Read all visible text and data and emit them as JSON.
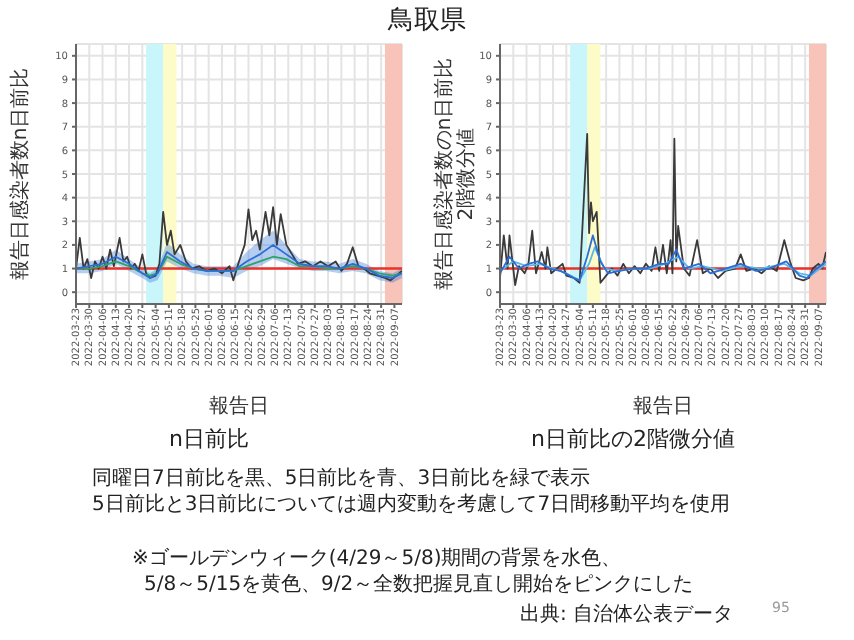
{
  "chart_data": [
    {
      "type": "line",
      "title": "n日前比",
      "xlabel": "報告日",
      "ylabel": "報告日感染者数n日前比",
      "xlim": [
        "2022-03-23",
        "2022-09-11"
      ],
      "ylim": [
        -0.5,
        10.5
      ],
      "yticks": [
        0,
        1,
        2,
        3,
        4,
        5,
        6,
        7,
        8,
        9,
        10
      ],
      "xticks": [
        "2022-03-23",
        "2022-03-30",
        "2022-04-06",
        "2022-04-13",
        "2022-04-20",
        "2022-04-27",
        "2022-05-04",
        "2022-05-11",
        "2022-05-18",
        "2022-05-25",
        "2022-06-01",
        "2022-06-08",
        "2022-06-15",
        "2022-06-22",
        "2022-06-29",
        "2022-07-06",
        "2022-07-13",
        "2022-07-20",
        "2022-07-27",
        "2022-08-03",
        "2022-08-10",
        "2022-08-17",
        "2022-08-24",
        "2022-08-31",
        "2022-09-07"
      ],
      "grid": true,
      "legend": false,
      "bands": [
        {
          "axis": "x",
          "from": "2022-04-29",
          "to": "2022-05-08",
          "color": "#c9f6fa"
        },
        {
          "axis": "x",
          "from": "2022-05-08",
          "to": "2022-05-15",
          "color": "#fdfbc8"
        },
        {
          "axis": "x",
          "from": "2022-09-02",
          "to": "2022-09-11",
          "color": "#f8c3b8"
        }
      ],
      "ref_lines": [
        {
          "axis": "y",
          "value": 1,
          "color": "#e8322a"
        }
      ],
      "series": [
        {
          "color": "#3a3a3a",
          "x": [
            "2022-03-23",
            "2022-03-25",
            "2022-03-27",
            "2022-03-29",
            "2022-03-31",
            "2022-04-02",
            "2022-04-04",
            "2022-04-06",
            "2022-04-08",
            "2022-04-10",
            "2022-04-12",
            "2022-04-15",
            "2022-04-17",
            "2022-04-19",
            "2022-04-21",
            "2022-04-23",
            "2022-04-25",
            "2022-04-27",
            "2022-04-29",
            "2022-05-01",
            "2022-05-04",
            "2022-05-06",
            "2022-05-08",
            "2022-05-10",
            "2022-05-12",
            "2022-05-14",
            "2022-05-17",
            "2022-05-20",
            "2022-05-23",
            "2022-05-27",
            "2022-05-31",
            "2022-06-04",
            "2022-06-08",
            "2022-06-12",
            "2022-06-14",
            "2022-06-17",
            "2022-06-20",
            "2022-06-22",
            "2022-06-24",
            "2022-06-26",
            "2022-06-28",
            "2022-07-01",
            "2022-07-03",
            "2022-07-05",
            "2022-07-07",
            "2022-07-09",
            "2022-07-12",
            "2022-07-15",
            "2022-07-18",
            "2022-07-22",
            "2022-07-26",
            "2022-07-30",
            "2022-08-03",
            "2022-08-07",
            "2022-08-10",
            "2022-08-13",
            "2022-08-16",
            "2022-08-19",
            "2022-08-22",
            "2022-08-25",
            "2022-08-29",
            "2022-09-02",
            "2022-09-05",
            "2022-09-08",
            "2022-09-11"
          ],
          "values": [
            1.0,
            2.3,
            1.0,
            1.4,
            0.6,
            1.3,
            1.0,
            1.5,
            1.0,
            1.8,
            1.1,
            2.3,
            1.3,
            1.5,
            1.0,
            1.2,
            0.9,
            1.6,
            0.8,
            0.6,
            0.7,
            1.2,
            3.4,
            2.0,
            2.6,
            1.6,
            2.0,
            1.3,
            1.0,
            1.1,
            0.9,
            1.0,
            0.8,
            1.1,
            0.5,
            1.3,
            2.0,
            3.5,
            2.2,
            2.6,
            1.8,
            3.4,
            2.4,
            3.6,
            2.0,
            3.3,
            2.0,
            1.6,
            1.2,
            1.3,
            1.1,
            1.3,
            1.1,
            1.3,
            0.9,
            1.2,
            1.9,
            1.1,
            1.0,
            0.8,
            0.7,
            0.6,
            0.5,
            0.7,
            0.9
          ]
        },
        {
          "color": "#2ea36a",
          "x": [
            "2022-03-23",
            "2022-03-30",
            "2022-04-06",
            "2022-04-13",
            "2022-04-20",
            "2022-04-27",
            "2022-05-01",
            "2022-05-05",
            "2022-05-10",
            "2022-05-17",
            "2022-05-24",
            "2022-05-31",
            "2022-06-07",
            "2022-06-14",
            "2022-06-21",
            "2022-06-28",
            "2022-07-05",
            "2022-07-12",
            "2022-07-19",
            "2022-07-26",
            "2022-08-02",
            "2022-08-09",
            "2022-08-16",
            "2022-08-23",
            "2022-08-30",
            "2022-09-06",
            "2022-09-11"
          ],
          "values": [
            1.0,
            1.0,
            1.1,
            1.3,
            1.1,
            0.8,
            0.7,
            0.8,
            1.5,
            1.2,
            1.0,
            0.9,
            0.9,
            0.9,
            1.1,
            1.3,
            1.5,
            1.4,
            1.1,
            1.1,
            1.0,
            1.0,
            1.1,
            1.0,
            0.8,
            0.7,
            0.8
          ]
        },
        {
          "color": "#2b6fd6",
          "x": [
            "2022-03-23",
            "2022-03-30",
            "2022-04-06",
            "2022-04-13",
            "2022-04-20",
            "2022-04-27",
            "2022-05-01",
            "2022-05-05",
            "2022-05-10",
            "2022-05-17",
            "2022-05-24",
            "2022-05-31",
            "2022-06-07",
            "2022-06-14",
            "2022-06-21",
            "2022-06-28",
            "2022-07-05",
            "2022-07-12",
            "2022-07-19",
            "2022-07-26",
            "2022-08-02",
            "2022-08-09",
            "2022-08-16",
            "2022-08-23",
            "2022-08-30",
            "2022-09-06",
            "2022-09-11"
          ],
          "values": [
            1.0,
            1.1,
            1.2,
            1.5,
            1.2,
            0.8,
            0.6,
            0.8,
            1.7,
            1.3,
            1.0,
            0.9,
            0.9,
            0.9,
            1.3,
            1.6,
            2.0,
            1.6,
            1.2,
            1.1,
            1.1,
            1.0,
            1.2,
            1.0,
            0.7,
            0.6,
            0.8
          ],
          "lower": [
            0.8,
            0.8,
            0.9,
            1.2,
            0.9,
            0.6,
            0.4,
            0.5,
            1.3,
            1.0,
            0.8,
            0.7,
            0.7,
            0.6,
            0.9,
            1.1,
            1.4,
            1.2,
            1.0,
            0.9,
            0.9,
            0.8,
            0.9,
            0.8,
            0.5,
            0.4,
            0.6
          ],
          "upper": [
            1.2,
            1.3,
            1.4,
            1.8,
            1.4,
            1.0,
            0.8,
            1.0,
            2.1,
            1.6,
            1.2,
            1.1,
            1.1,
            1.1,
            1.7,
            2.2,
            2.6,
            2.0,
            1.4,
            1.3,
            1.3,
            1.2,
            1.4,
            1.2,
            0.9,
            0.8,
            1.0
          ]
        }
      ]
    },
    {
      "type": "line",
      "title": "n日前比の2階微分値",
      "xlabel": "報告日",
      "ylabel": "報告日感染者数のn日前比\n2階微分値",
      "xlim": [
        "2022-03-23",
        "2022-09-11"
      ],
      "ylim": [
        -0.5,
        10.5
      ],
      "yticks": [
        0,
        1,
        2,
        3,
        4,
        5,
        6,
        7,
        8,
        9,
        10
      ],
      "xticks": [
        "2022-03-23",
        "2022-03-30",
        "2022-04-06",
        "2022-04-13",
        "2022-04-20",
        "2022-04-27",
        "2022-05-04",
        "2022-05-11",
        "2022-05-18",
        "2022-05-25",
        "2022-06-01",
        "2022-06-08",
        "2022-06-15",
        "2022-06-22",
        "2022-06-29",
        "2022-07-06",
        "2022-07-13",
        "2022-07-20",
        "2022-07-27",
        "2022-08-03",
        "2022-08-10",
        "2022-08-17",
        "2022-08-24",
        "2022-08-31",
        "2022-09-07"
      ],
      "grid": true,
      "legend": false,
      "bands": [
        {
          "axis": "x",
          "from": "2022-04-29",
          "to": "2022-05-08",
          "color": "#c9f6fa"
        },
        {
          "axis": "x",
          "from": "2022-05-08",
          "to": "2022-05-15",
          "color": "#fdfbc8"
        },
        {
          "axis": "x",
          "from": "2022-09-02",
          "to": "2022-09-11",
          "color": "#f8c3b8"
        }
      ],
      "ref_lines": [
        {
          "axis": "y",
          "value": 1,
          "color": "#e8322a"
        }
      ],
      "series": [
        {
          "color": "#3a3a3a",
          "x": [
            "2022-03-23",
            "2022-03-25",
            "2022-03-27",
            "2022-03-28",
            "2022-03-30",
            "2022-03-31",
            "2022-04-02",
            "2022-04-05",
            "2022-04-07",
            "2022-04-09",
            "2022-04-11",
            "2022-04-14",
            "2022-04-16",
            "2022-04-17",
            "2022-04-19",
            "2022-04-22",
            "2022-04-25",
            "2022-04-27",
            "2022-05-01",
            "2022-05-04",
            "2022-05-08",
            "2022-05-09",
            "2022-05-10",
            "2022-05-11",
            "2022-05-13",
            "2022-05-15",
            "2022-05-18",
            "2022-05-21",
            "2022-05-24",
            "2022-05-27",
            "2022-05-30",
            "2022-06-02",
            "2022-06-05",
            "2022-06-08",
            "2022-06-11",
            "2022-06-13",
            "2022-06-15",
            "2022-06-17",
            "2022-06-19",
            "2022-06-21",
            "2022-06-22",
            "2022-06-23",
            "2022-06-24",
            "2022-06-25",
            "2022-06-28",
            "2022-07-01",
            "2022-07-05",
            "2022-07-08",
            "2022-07-12",
            "2022-07-16",
            "2022-07-20",
            "2022-07-25",
            "2022-07-28",
            "2022-07-31",
            "2022-08-04",
            "2022-08-08",
            "2022-08-12",
            "2022-08-16",
            "2022-08-20",
            "2022-08-23",
            "2022-08-26",
            "2022-08-30",
            "2022-09-02",
            "2022-09-04",
            "2022-09-07",
            "2022-09-09",
            "2022-09-11"
          ],
          "values": [
            0.6,
            2.4,
            1.0,
            2.4,
            1.0,
            0.3,
            1.1,
            0.8,
            1.2,
            2.6,
            0.8,
            1.7,
            1.0,
            1.9,
            0.8,
            1.0,
            1.2,
            0.7,
            0.6,
            0.4,
            6.7,
            2.5,
            3.8,
            3.0,
            3.4,
            0.4,
            0.7,
            1.0,
            0.7,
            1.2,
            0.8,
            1.1,
            0.8,
            1.2,
            0.9,
            1.9,
            0.9,
            2.0,
            0.8,
            2.2,
            0.8,
            6.5,
            1.3,
            2.8,
            1.0,
            0.7,
            2.2,
            0.8,
            1.0,
            0.6,
            0.9,
            1.0,
            1.6,
            0.9,
            1.0,
            0.8,
            1.1,
            0.9,
            2.2,
            1.3,
            0.6,
            0.5,
            0.6,
            1.0,
            1.2,
            1.0,
            1.7
          ]
        },
        {
          "color": "#5bb8e8",
          "x": [
            "2022-03-23",
            "2022-03-30",
            "2022-04-06",
            "2022-04-13",
            "2022-04-20",
            "2022-04-27",
            "2022-05-04",
            "2022-05-09",
            "2022-05-12",
            "2022-05-17",
            "2022-05-24",
            "2022-06-01",
            "2022-06-10",
            "2022-06-18",
            "2022-06-25",
            "2022-07-01",
            "2022-07-08",
            "2022-07-18",
            "2022-07-28",
            "2022-08-08",
            "2022-08-20",
            "2022-08-28",
            "2022-09-03",
            "2022-09-11"
          ],
          "values": [
            0.9,
            1.3,
            1.1,
            1.2,
            1.0,
            0.8,
            0.5,
            1.2,
            1.9,
            1.0,
            0.9,
            1.0,
            1.0,
            1.2,
            1.5,
            1.0,
            1.1,
            0.9,
            1.1,
            1.0,
            1.2,
            0.8,
            0.7,
            1.2
          ]
        },
        {
          "color": "#2b6fd6",
          "x": [
            "2022-03-23",
            "2022-03-28",
            "2022-04-02",
            "2022-04-07",
            "2022-04-12",
            "2022-04-18",
            "2022-04-24",
            "2022-05-01",
            "2022-05-04",
            "2022-05-08",
            "2022-05-11",
            "2022-05-15",
            "2022-05-19",
            "2022-05-25",
            "2022-06-01",
            "2022-06-08",
            "2022-06-15",
            "2022-06-20",
            "2022-06-24",
            "2022-06-28",
            "2022-07-06",
            "2022-07-12",
            "2022-07-20",
            "2022-07-28",
            "2022-08-05",
            "2022-08-12",
            "2022-08-21",
            "2022-08-28",
            "2022-09-01",
            "2022-09-06",
            "2022-09-11"
          ],
          "values": [
            0.8,
            1.5,
            1.0,
            1.2,
            1.3,
            1.0,
            0.9,
            0.6,
            0.5,
            1.5,
            2.4,
            1.3,
            0.8,
            0.9,
            1.0,
            1.0,
            1.2,
            1.2,
            1.8,
            1.0,
            1.2,
            0.8,
            1.0,
            1.2,
            0.9,
            1.0,
            1.3,
            0.7,
            0.6,
            1.0,
            1.3
          ]
        }
      ]
    },
    {
      "type": "other",
      "title": "鳥取県",
      "annotations": [
        "同曜日7日前比を黒、5日前比を青、3日前比を緑で表示",
        "5日前比と3日前比については週内変動を考慮して7日間移動平均を使用",
        "※ゴールデンウィーク(4/29～5/8)期間の背景を水色、",
        "5/8～5/15を黄色、9/2～全数把握見直し開始をピンクにした",
        "出典: 自治体公表データ",
        "95"
      ]
    }
  ]
}
